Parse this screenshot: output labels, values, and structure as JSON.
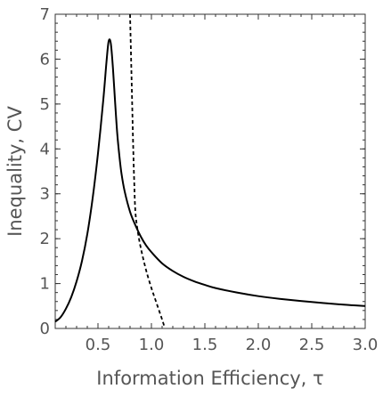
{
  "chart_data": {
    "type": "line",
    "xlabel": "Information Efficiency, τ",
    "ylabel": "Inequality, CV",
    "xlim": [
      0.1,
      3.0
    ],
    "ylim": [
      0,
      7
    ],
    "xticks": [
      0.5,
      1.0,
      1.5,
      2.0,
      2.5,
      3.0
    ],
    "xtick_labels": [
      "0.5",
      "1.0",
      "1.5",
      "2.0",
      "2.5",
      "3.0"
    ],
    "yticks": [
      0,
      1,
      2,
      3,
      4,
      5,
      6,
      7
    ],
    "ytick_labels": [
      "0",
      "1",
      "2",
      "3",
      "4",
      "5",
      "6",
      "7"
    ],
    "grid": false,
    "series": [
      {
        "style": "solid",
        "x": [
          0.1,
          0.15,
          0.2,
          0.25,
          0.3,
          0.35,
          0.4,
          0.45,
          0.5,
          0.55,
          0.58,
          0.6,
          0.62,
          0.64,
          0.66,
          0.68,
          0.7,
          0.72,
          0.75,
          0.8,
          0.85,
          0.9,
          0.95,
          1.0,
          1.1,
          1.2,
          1.3,
          1.4,
          1.5,
          1.6,
          1.8,
          2.0,
          2.2,
          2.5,
          2.8,
          3.0
        ],
        "y": [
          0.15,
          0.25,
          0.44,
          0.7,
          1.05,
          1.5,
          2.1,
          2.9,
          3.9,
          5.1,
          5.95,
          6.4,
          6.35,
          5.8,
          5.05,
          4.35,
          3.85,
          3.45,
          3.05,
          2.6,
          2.3,
          2.05,
          1.85,
          1.7,
          1.45,
          1.28,
          1.15,
          1.05,
          0.97,
          0.9,
          0.8,
          0.72,
          0.66,
          0.59,
          0.53,
          0.5
        ]
      },
      {
        "style": "dashed",
        "x": [
          0.8,
          0.81,
          0.82,
          0.83,
          0.84,
          0.85,
          0.87,
          0.9,
          0.95,
          1.0,
          1.05,
          1.1,
          1.12
        ],
        "y": [
          7.0,
          6.0,
          5.0,
          4.0,
          3.2,
          2.6,
          2.2,
          1.8,
          1.3,
          0.9,
          0.55,
          0.2,
          0.05
        ]
      }
    ]
  }
}
